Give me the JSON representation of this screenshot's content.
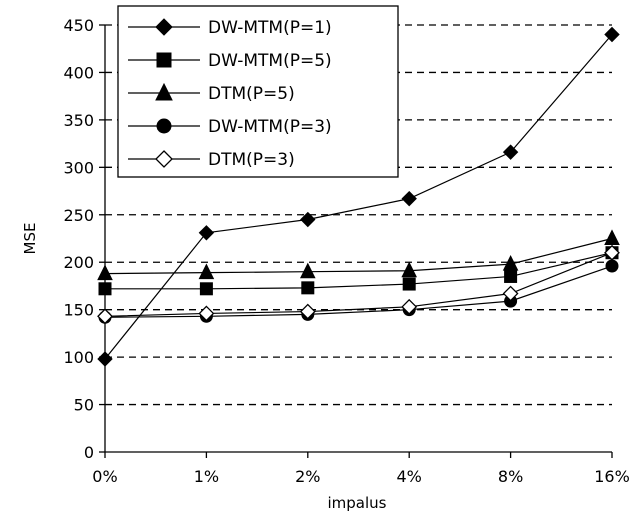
{
  "chart_data": {
    "type": "line",
    "title": "",
    "xlabel": "impalus",
    "ylabel": "MSE",
    "categories": [
      "0%",
      "1%",
      "2%",
      "4%",
      "8%",
      "16%"
    ],
    "ylim": [
      0,
      450
    ],
    "yticks": [
      0,
      50,
      100,
      150,
      200,
      250,
      300,
      350,
      400,
      450
    ],
    "grid": "horizontal dashed",
    "legend_position": "top-left",
    "series": [
      {
        "name": "DW-MTM(P=1)",
        "marker": "diamond-filled",
        "values": [
          98,
          231,
          245,
          267,
          316,
          440
        ]
      },
      {
        "name": "DW-MTM(P=5)",
        "marker": "square-filled",
        "values": [
          172,
          172,
          173,
          177,
          185,
          210
        ]
      },
      {
        "name": "DTM(P=5)",
        "marker": "triangle-filled",
        "values": [
          188,
          189,
          190,
          191,
          198,
          225
        ]
      },
      {
        "name": "DW-MTM(P=3)",
        "marker": "circle-filled",
        "values": [
          142,
          143,
          145,
          150,
          159,
          196
        ]
      },
      {
        "name": "DTM(P=3)",
        "marker": "diamond-open",
        "values": [
          143,
          146,
          148,
          153,
          167,
          210
        ]
      }
    ]
  }
}
